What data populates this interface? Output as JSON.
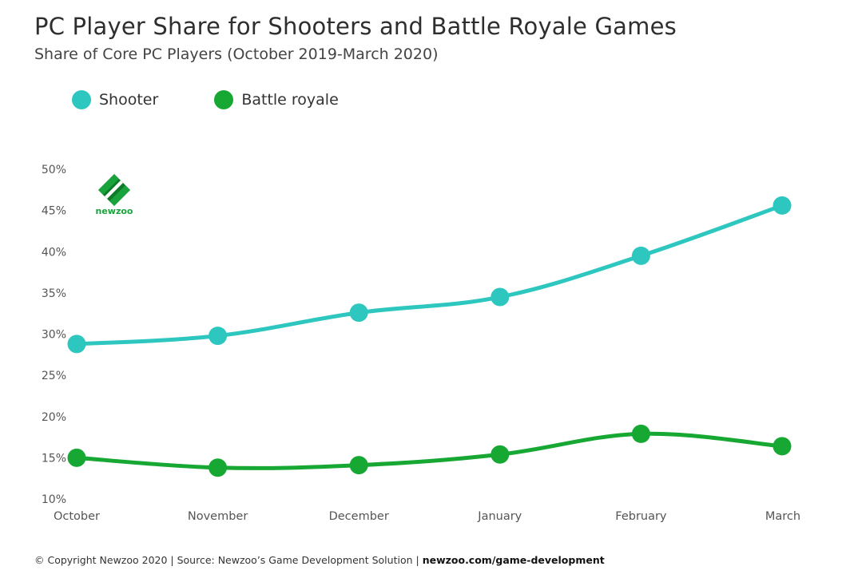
{
  "header": {
    "title": "PC Player Share for Shooters and Battle Royale Games",
    "subtitle": "Share of Core PC Players (October 2019-March 2020)"
  },
  "logo": {
    "text": "newzoo",
    "icon": "newzoo-logo-icon"
  },
  "footer": {
    "text": "© Copyright Newzoo 2020 | Source: Newzoo’s Game Development Solution | ",
    "link": "newzoo.com/game-development"
  },
  "colors": {
    "shooter": "#2ec7bf",
    "battle_royale": "#17a833"
  },
  "chart_data": {
    "type": "line",
    "title": "PC Player Share for Shooters and Battle Royale Games",
    "subtitle": "Share of Core PC Players (October 2019-March 2020)",
    "categories": [
      "October",
      "November",
      "December",
      "January",
      "February",
      "March"
    ],
    "series": [
      {
        "name": "Shooter",
        "color": "#2ec7bf",
        "values": [
          28.8,
          29.8,
          32.6,
          34.5,
          39.5,
          45.6
        ]
      },
      {
        "name": "Battle royale",
        "color": "#17a833",
        "values": [
          15.0,
          13.8,
          14.1,
          15.4,
          17.9,
          16.4
        ]
      }
    ],
    "yticks": [
      "10%",
      "15%",
      "20%",
      "25%",
      "30%",
      "35%",
      "40%",
      "45%",
      "50%"
    ],
    "ylim": [
      10,
      50
    ],
    "grid": false,
    "legend": "top-left"
  }
}
